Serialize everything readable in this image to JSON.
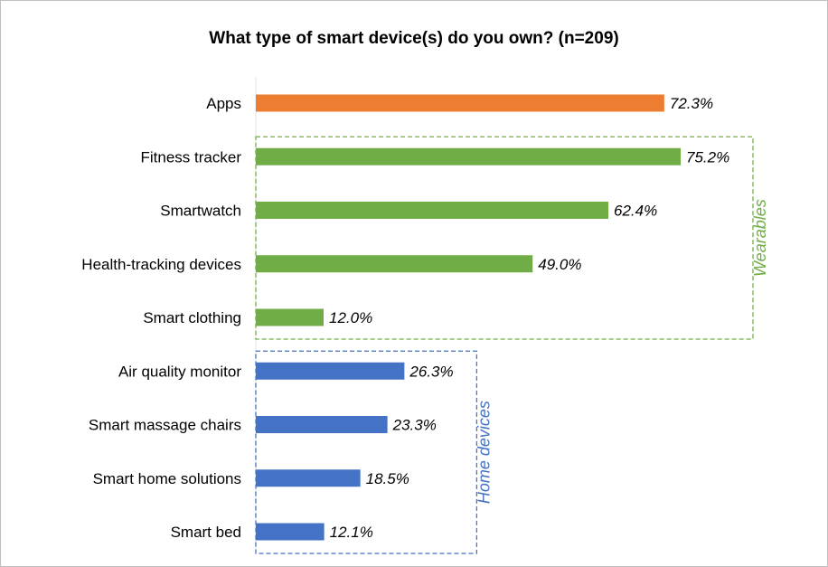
{
  "chart_data": {
    "type": "bar",
    "orientation": "horizontal",
    "title": "What type of smart device(s) do you own? (n=209)",
    "categories": [
      "Apps",
      "Fitness tracker",
      "Smartwatch",
      "Health-tracking devices",
      "Smart clothing",
      "Air quality monitor",
      "Smart massage chairs",
      "Smart home solutions",
      "Smart bed"
    ],
    "values": [
      72.3,
      75.2,
      62.4,
      49.0,
      12.0,
      26.3,
      23.3,
      18.5,
      12.1
    ],
    "value_labels": [
      "72.3%",
      "75.2%",
      "62.4%",
      "49.0%",
      "12.0%",
      "26.3%",
      "23.3%",
      "18.5%",
      "12.1%"
    ],
    "bar_colors": [
      "#ED7D31",
      "#70AD47",
      "#70AD47",
      "#70AD47",
      "#70AD47",
      "#4472C4",
      "#4472C4",
      "#4472C4",
      "#4472C4"
    ],
    "xlim": [
      0,
      100
    ],
    "grid": false,
    "groups": [
      {
        "label": "Wearables",
        "from": 1,
        "to": 4,
        "color": "#70AD47"
      },
      {
        "label": "Home devices",
        "from": 5,
        "to": 8,
        "color": "#4472C4"
      }
    ]
  }
}
